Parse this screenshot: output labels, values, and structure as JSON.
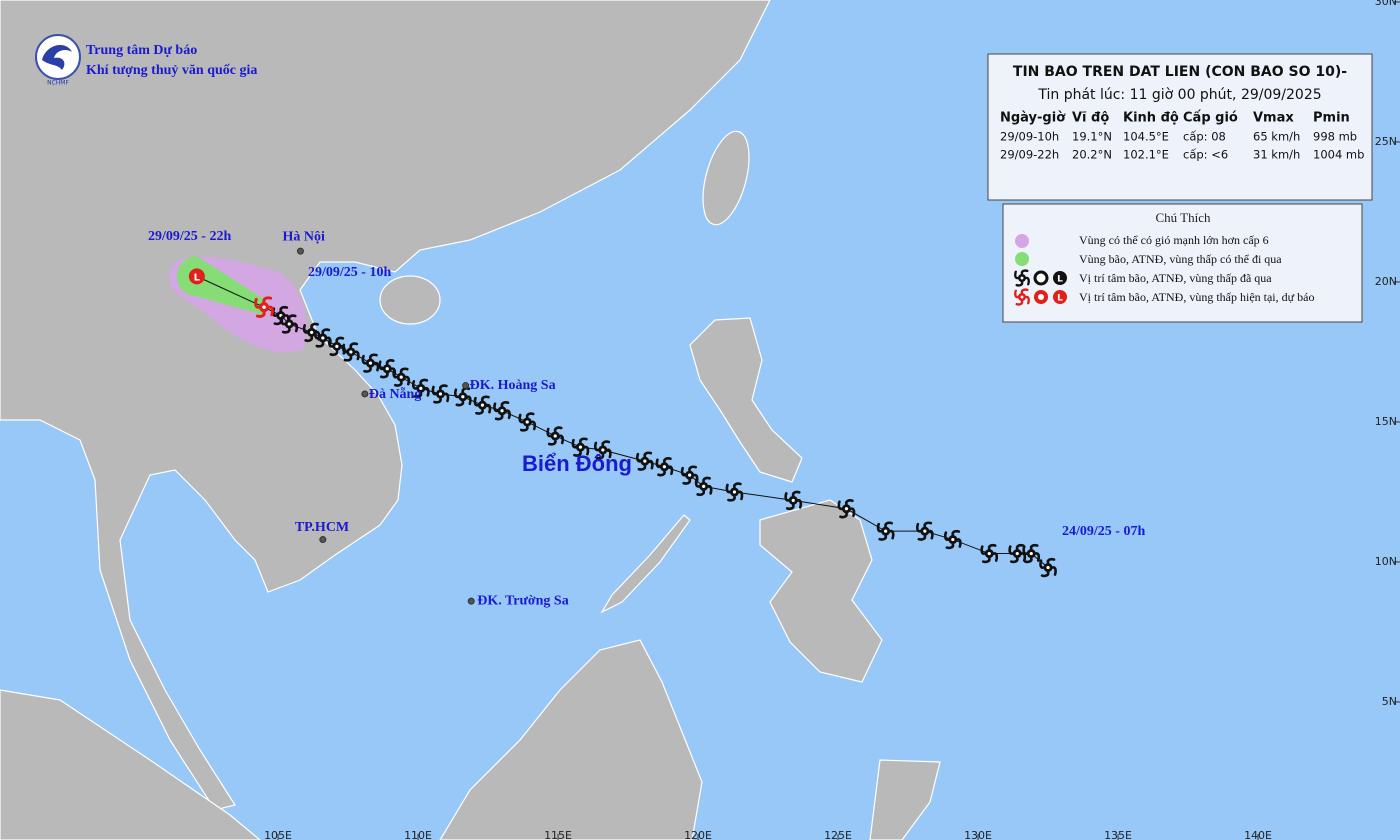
{
  "header": {
    "org_line1": "Trung tâm Dự báo",
    "org_line2": "Khí tượng thuỷ văn quốc gia",
    "logo_text": "NCHMF"
  },
  "bulletin": {
    "title": "TIN BAO TREN DAT LIEN (CON BAO SO 10)-",
    "issued": "Tin phát lúc: 11 giờ 00 phút, 29/09/2025",
    "columns": [
      "Ngày-giờ",
      "Vĩ độ",
      "Kinh độ",
      "Cấp gió",
      "Vmax",
      "Pmin"
    ],
    "rows": [
      [
        "29/09-10h",
        "19.1°N",
        "104.5°E",
        "cấp: 08",
        "65 km/h",
        "998 mb"
      ],
      [
        "29/09-22h",
        "20.2°N",
        "102.1°E",
        "cấp: <6",
        "31 km/h",
        "1004 mb"
      ]
    ]
  },
  "legend": {
    "title": "Chú Thích",
    "items": [
      "Vùng có thể có gió mạnh lớn hơn cấp 6",
      "Vùng bão, ATNĐ, vùng thấp có thể đi qua",
      "Vị trí tâm bão, ATNĐ, vùng thấp đã qua",
      "Vị trí tâm bão, ATNĐ, vùng thấp hiện tại, dự báo"
    ]
  },
  "map": {
    "lonlim": [
      95.07,
      145.07
    ],
    "latlim": [
      0.07,
      30.07
    ],
    "lonticks": [
      {
        "value": 105,
        "label": "105E"
      },
      {
        "value": 110,
        "label": "110E"
      },
      {
        "value": 115,
        "label": "115E"
      },
      {
        "value": 120,
        "label": "120E"
      },
      {
        "value": 125,
        "label": "125E"
      },
      {
        "value": 130,
        "label": "130E"
      },
      {
        "value": 135,
        "label": "135E"
      },
      {
        "value": 140,
        "label": "140E"
      }
    ],
    "latticks": [
      {
        "value": 30,
        "label": "30N"
      },
      {
        "value": 25,
        "label": "25N"
      },
      {
        "value": 20,
        "label": "20N"
      },
      {
        "value": 15,
        "label": "15N"
      },
      {
        "value": 10,
        "label": "10N"
      },
      {
        "value": 5,
        "label": "5N"
      }
    ],
    "sea_label": "Biển Đông",
    "time_labels": [
      "29/09/25 - 22h",
      "29/09/25 - 10h",
      "24/09/25 - 07h"
    ],
    "places": [
      {
        "label": "Hà Nội",
        "lon": 105.8,
        "lat": 21.1
      },
      {
        "label": "Đà Nẵng",
        "lon": 108.1,
        "lat": 16.0
      },
      {
        "label": "ĐK. Hoàng Sa",
        "lon": 111.7,
        "lat": 16.3
      },
      {
        "label": "TP.HCM",
        "lon": 106.6,
        "lat": 10.8
      },
      {
        "label": "ĐK. Trường Sa",
        "lon": 111.9,
        "lat": 8.6
      }
    ],
    "track": {
      "symbol_low": "L",
      "forecast": {
        "lon": 102.1,
        "lat": 20.2
      },
      "current": {
        "lon": 104.5,
        "lat": 19.1
      },
      "past": [
        {
          "lon": 105.1,
          "lat": 18.8
        },
        {
          "lon": 105.4,
          "lat": 18.5
        },
        {
          "lon": 106.2,
          "lat": 18.2
        },
        {
          "lon": 106.6,
          "lat": 18.0
        },
        {
          "lon": 107.1,
          "lat": 17.7
        },
        {
          "lon": 107.6,
          "lat": 17.5
        },
        {
          "lon": 108.3,
          "lat": 17.1
        },
        {
          "lon": 108.9,
          "lat": 16.9
        },
        {
          "lon": 109.4,
          "lat": 16.6
        },
        {
          "lon": 110.1,
          "lat": 16.2
        },
        {
          "lon": 110.8,
          "lat": 16.0
        },
        {
          "lon": 111.6,
          "lat": 15.9
        },
        {
          "lon": 112.3,
          "lat": 15.6
        },
        {
          "lon": 113.0,
          "lat": 15.4
        },
        {
          "lon": 113.9,
          "lat": 15.0
        },
        {
          "lon": 114.9,
          "lat": 14.5
        },
        {
          "lon": 115.8,
          "lat": 14.1
        },
        {
          "lon": 116.6,
          "lat": 14.0
        },
        {
          "lon": 118.1,
          "lat": 13.6
        },
        {
          "lon": 118.8,
          "lat": 13.4
        },
        {
          "lon": 119.7,
          "lat": 13.1
        },
        {
          "lon": 120.2,
          "lat": 12.7
        },
        {
          "lon": 121.3,
          "lat": 12.5
        },
        {
          "lon": 123.4,
          "lat": 12.2
        },
        {
          "lon": 125.3,
          "lat": 11.9
        },
        {
          "lon": 126.7,
          "lat": 11.1
        },
        {
          "lon": 128.1,
          "lat": 11.1
        },
        {
          "lon": 129.1,
          "lat": 10.8
        },
        {
          "lon": 130.4,
          "lat": 10.3
        },
        {
          "lon": 131.4,
          "lat": 10.3
        },
        {
          "lon": 131.9,
          "lat": 10.3
        },
        {
          "lon": 132.5,
          "lat": 9.8
        }
      ]
    }
  }
}
